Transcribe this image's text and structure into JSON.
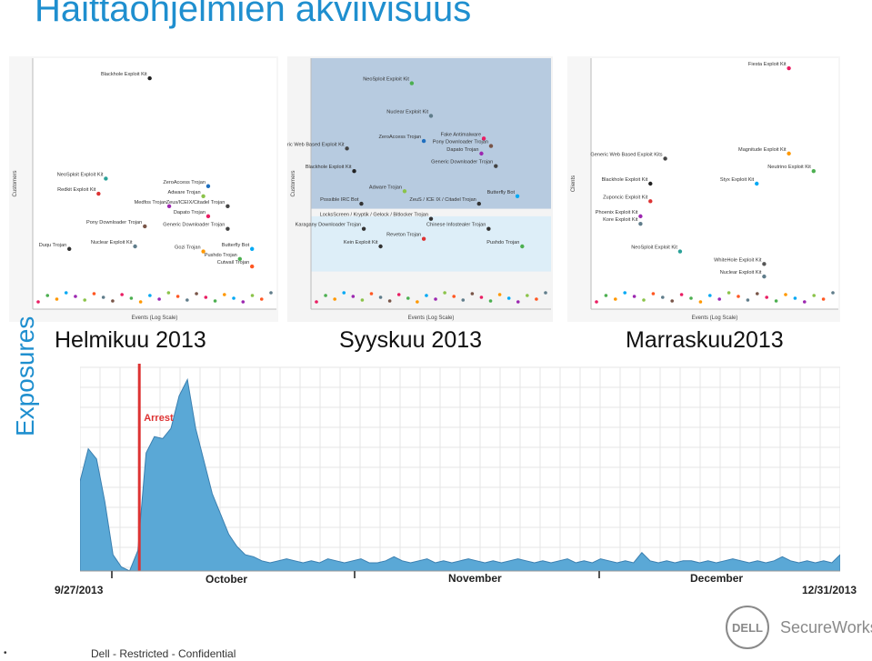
{
  "slide": {
    "title": "Haittaohjelmien akviivisuus",
    "footer": "Dell - Restricted - Confidential",
    "bullet": "•",
    "logo_dell": "DELL",
    "logo_secureworks": "SecureWorks",
    "exposures_label": "Exposures",
    "accent_color": "#1f8fcf"
  },
  "chart_data": [
    {
      "type": "scatter",
      "caption": "Helmikuu 2013",
      "xlabel": "Events (Log Scale)",
      "ylabel": "Customers",
      "labels": [
        {
          "text": "Blackhole Exploit Kit",
          "x": 0.48,
          "y": 0.92,
          "color": "#222"
        },
        {
          "text": "NeoSploit Exploit Kit",
          "x": 0.3,
          "y": 0.52,
          "color": "#2aa198"
        },
        {
          "text": "ZeroAccess Trojan",
          "x": 0.72,
          "y": 0.49,
          "color": "#1f6fbf"
        },
        {
          "text": "Redkit Exploit Kit",
          "x": 0.27,
          "y": 0.46,
          "color": "#d33"
        },
        {
          "text": "Adware Trojan",
          "x": 0.7,
          "y": 0.45,
          "color": "#8bc34a"
        },
        {
          "text": "Medfos Trojan",
          "x": 0.56,
          "y": 0.41,
          "color": "#9c27b0"
        },
        {
          "text": "Zeus/ICEIX/Citadel Trojan",
          "x": 0.8,
          "y": 0.41,
          "color": "#444"
        },
        {
          "text": "Dapato Trojan",
          "x": 0.72,
          "y": 0.37,
          "color": "#e91e63"
        },
        {
          "text": "Pony Downloader Trojan",
          "x": 0.46,
          "y": 0.33,
          "color": "#795548"
        },
        {
          "text": "Generic Downloader Trojan",
          "x": 0.8,
          "y": 0.32,
          "color": "#444"
        },
        {
          "text": "Duqu Trojan",
          "x": 0.15,
          "y": 0.24,
          "color": "#333"
        },
        {
          "text": "Nuclear Exploit Kit",
          "x": 0.42,
          "y": 0.25,
          "color": "#607d8b"
        },
        {
          "text": "Gozi Trojan",
          "x": 0.7,
          "y": 0.23,
          "color": "#ff9800"
        },
        {
          "text": "Butterfly Bot",
          "x": 0.9,
          "y": 0.24,
          "color": "#03a9f4"
        },
        {
          "text": "Pushdo Trojan",
          "x": 0.85,
          "y": 0.2,
          "color": "#4caf50"
        },
        {
          "text": "Cutwail Trojan",
          "x": 0.9,
          "y": 0.17,
          "color": "#ff5722"
        }
      ]
    },
    {
      "type": "scatter",
      "caption": "Syyskuu 2013",
      "xlabel": "Events (Log Scale)",
      "ylabel": "Customers",
      "labels": [
        {
          "text": "NeoSploit Exploit Kit",
          "x": 0.42,
          "y": 0.9,
          "color": "#4caf50"
        },
        {
          "text": "Nuclear Exploit Kit",
          "x": 0.5,
          "y": 0.77,
          "color": "#607d8b"
        },
        {
          "text": "Fake Antimalware",
          "x": 0.72,
          "y": 0.68,
          "color": "#e91e63"
        },
        {
          "text": "ZeroAccess Trojan",
          "x": 0.47,
          "y": 0.67,
          "color": "#1f6fbf"
        },
        {
          "text": "Pony Downloader Trojan",
          "x": 0.75,
          "y": 0.65,
          "color": "#795548"
        },
        {
          "text": "Generic Web Based Exploit Kit",
          "x": 0.15,
          "y": 0.64,
          "color": "#444"
        },
        {
          "text": "Dapato Trojan",
          "x": 0.71,
          "y": 0.62,
          "color": "#9c27b0"
        },
        {
          "text": "Generic Downloader Trojan",
          "x": 0.77,
          "y": 0.57,
          "color": "#444"
        },
        {
          "text": "Blackhole Exploit Kit",
          "x": 0.18,
          "y": 0.55,
          "color": "#222"
        },
        {
          "text": "Adware Trojan",
          "x": 0.39,
          "y": 0.47,
          "color": "#8bc34a"
        },
        {
          "text": "Butterfly Bot",
          "x": 0.86,
          "y": 0.45,
          "color": "#03a9f4"
        },
        {
          "text": "Possible IRC Bot",
          "x": 0.21,
          "y": 0.42,
          "color": "#333"
        },
        {
          "text": "ZeuS / ICE IX / Citadel Trojan",
          "x": 0.7,
          "y": 0.42,
          "color": "#333"
        },
        {
          "text": "LocksScreen / Kryptik / Gelock / Bitlocker Trojan",
          "x": 0.5,
          "y": 0.36,
          "color": "#333"
        },
        {
          "text": "Karagany Downloader Trojan",
          "x": 0.22,
          "y": 0.32,
          "color": "#333"
        },
        {
          "text": "Chinese Infostealer Trojan",
          "x": 0.74,
          "y": 0.32,
          "color": "#333"
        },
        {
          "text": "Reveton Trojan",
          "x": 0.47,
          "y": 0.28,
          "color": "#d33"
        },
        {
          "text": "Kein Exploit Kit",
          "x": 0.29,
          "y": 0.25,
          "color": "#333"
        },
        {
          "text": "Pushdo Trojan",
          "x": 0.88,
          "y": 0.25,
          "color": "#4caf50"
        }
      ]
    },
    {
      "type": "scatter",
      "caption": "Marraskuu2013",
      "xlabel": "Events (Log Scale)",
      "ylabel": "Clients",
      "labels": [
        {
          "text": "Fiesta Exploit Kit",
          "x": 0.8,
          "y": 0.96,
          "color": "#e91e63"
        },
        {
          "text": "Generic Web Based Exploit Kits",
          "x": 0.3,
          "y": 0.6,
          "color": "#444"
        },
        {
          "text": "Magnitude Exploit Kit",
          "x": 0.8,
          "y": 0.62,
          "color": "#ff9800"
        },
        {
          "text": "Neutrino Exploit Kit",
          "x": 0.9,
          "y": 0.55,
          "color": "#4caf50"
        },
        {
          "text": "Styx Exploit Kit",
          "x": 0.67,
          "y": 0.5,
          "color": "#03a9f4"
        },
        {
          "text": "Blackhole Exploit Kit",
          "x": 0.24,
          "y": 0.5,
          "color": "#222"
        },
        {
          "text": "Zuponcic Exploit Kit",
          "x": 0.24,
          "y": 0.43,
          "color": "#d33"
        },
        {
          "text": "Phoenix Exploit Kit",
          "x": 0.2,
          "y": 0.37,
          "color": "#9c27b0"
        },
        {
          "text": "Kore Exploit Kit",
          "x": 0.2,
          "y": 0.34,
          "color": "#607d8b"
        },
        {
          "text": "NeoSploit Exploit Kit",
          "x": 0.36,
          "y": 0.23,
          "color": "#2aa198"
        },
        {
          "text": "WhiteHole Exploit Kit",
          "x": 0.7,
          "y": 0.18,
          "color": "#555"
        },
        {
          "text": "Nuclear Exploit Kit",
          "x": 0.7,
          "y": 0.13,
          "color": "#607d8b"
        }
      ]
    },
    {
      "type": "area",
      "ylabel": "Exposures",
      "x_tick_labels": [
        "October",
        "November",
        "December"
      ],
      "x_range_labels": [
        "9/27/2013",
        "12/31/2013"
      ],
      "annotation": {
        "text": "Arrest",
        "x": 0.078,
        "color": "#d33"
      },
      "series_color": "#5aa8d6",
      "ylim": [
        0,
        1
      ],
      "values": [
        0.44,
        0.6,
        0.55,
        0.34,
        0.08,
        0.02,
        0.0,
        0.1,
        0.58,
        0.66,
        0.65,
        0.7,
        0.86,
        0.94,
        0.7,
        0.54,
        0.38,
        0.28,
        0.18,
        0.12,
        0.08,
        0.07,
        0.05,
        0.04,
        0.05,
        0.06,
        0.05,
        0.04,
        0.05,
        0.04,
        0.06,
        0.05,
        0.04,
        0.05,
        0.06,
        0.04,
        0.04,
        0.05,
        0.07,
        0.05,
        0.04,
        0.05,
        0.06,
        0.04,
        0.05,
        0.04,
        0.05,
        0.06,
        0.05,
        0.04,
        0.05,
        0.04,
        0.05,
        0.06,
        0.05,
        0.04,
        0.05,
        0.04,
        0.05,
        0.06,
        0.04,
        0.05,
        0.04,
        0.06,
        0.05,
        0.04,
        0.05,
        0.04,
        0.09,
        0.05,
        0.04,
        0.05,
        0.04,
        0.05,
        0.05,
        0.04,
        0.05,
        0.04,
        0.05,
        0.06,
        0.05,
        0.04,
        0.05,
        0.04,
        0.05,
        0.07,
        0.05,
        0.04,
        0.05,
        0.04,
        0.05,
        0.04,
        0.08
      ]
    }
  ]
}
